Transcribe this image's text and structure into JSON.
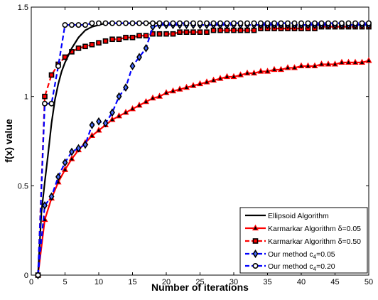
{
  "chart_data": {
    "type": "line",
    "title": "",
    "xlabel": "Number of iterations",
    "ylabel": "f(x) value",
    "xlim": [
      0,
      50
    ],
    "ylim": [
      0,
      1.5
    ],
    "x_ticks": [
      0,
      5,
      10,
      15,
      20,
      25,
      30,
      35,
      40,
      45,
      50
    ],
    "y_ticks": [
      0,
      0.5,
      1,
      1.5
    ],
    "x_tick_labels": [
      "0",
      "5",
      "10",
      "15",
      "20",
      "25",
      "30",
      "35",
      "40",
      "45",
      "50"
    ],
    "y_tick_labels": [
      "0",
      "0.5",
      "1",
      "1.5"
    ],
    "grid": false,
    "legend_position": "bottom-right",
    "series": [
      {
        "name": "Ellipsoid Algorithm",
        "legend_label": "Ellipsoid Algorithm",
        "color": "#000000",
        "line_style": "solid",
        "marker": "none",
        "x": [
          1,
          1.5,
          2,
          2.5,
          3,
          3.5,
          4,
          4.5,
          5,
          6,
          7,
          8,
          9,
          10,
          11,
          12,
          14,
          16,
          18,
          20
        ],
        "y": [
          0,
          0.35,
          0.52,
          0.68,
          0.85,
          0.98,
          1.07,
          1.14,
          1.19,
          1.27,
          1.33,
          1.37,
          1.39,
          1.4,
          1.41,
          1.41,
          1.41,
          1.41,
          1.41,
          1.41
        ]
      },
      {
        "name": "Karmarkar Algorithm δ=0.05",
        "legend_label": "Karmarkar Algorithm δ=0.05",
        "color": "#ff0000",
        "line_style": "solid",
        "marker": "triangle",
        "x": [
          1,
          2,
          3,
          4,
          5,
          6,
          7,
          8,
          9,
          10,
          11,
          12,
          13,
          14,
          15,
          16,
          17,
          18,
          19,
          20,
          21,
          22,
          23,
          24,
          25,
          26,
          27,
          28,
          29,
          30,
          31,
          32,
          33,
          34,
          35,
          36,
          37,
          38,
          39,
          40,
          41,
          42,
          43,
          44,
          45,
          46,
          47,
          48,
          49,
          50
        ],
        "y": [
          0,
          0.31,
          0.43,
          0.52,
          0.59,
          0.65,
          0.7,
          0.74,
          0.78,
          0.81,
          0.84,
          0.87,
          0.89,
          0.91,
          0.93,
          0.95,
          0.97,
          0.99,
          1.0,
          1.02,
          1.03,
          1.04,
          1.05,
          1.06,
          1.07,
          1.08,
          1.09,
          1.1,
          1.11,
          1.11,
          1.12,
          1.13,
          1.13,
          1.14,
          1.14,
          1.15,
          1.15,
          1.16,
          1.16,
          1.17,
          1.17,
          1.17,
          1.18,
          1.18,
          1.18,
          1.19,
          1.19,
          1.19,
          1.19,
          1.2
        ]
      },
      {
        "name": "Karmarkar Algorithm δ=0.50",
        "legend_label": "Karmarkar Algorithm δ=0.50",
        "color": "#ff0000",
        "line_style": "dashed",
        "marker": "square",
        "x": [
          1,
          2,
          3,
          4,
          5,
          6,
          7,
          8,
          9,
          10,
          11,
          12,
          13,
          14,
          15,
          16,
          17,
          18,
          19,
          20,
          21,
          22,
          23,
          24,
          25,
          26,
          27,
          28,
          29,
          30,
          31,
          32,
          33,
          34,
          35,
          36,
          37,
          38,
          39,
          40,
          41,
          42,
          43,
          44,
          45,
          46,
          47,
          48,
          49,
          50
        ],
        "y": [
          0,
          1.0,
          1.12,
          1.18,
          1.22,
          1.25,
          1.27,
          1.28,
          1.29,
          1.3,
          1.31,
          1.32,
          1.32,
          1.33,
          1.33,
          1.34,
          1.34,
          1.35,
          1.35,
          1.35,
          1.35,
          1.36,
          1.36,
          1.36,
          1.36,
          1.36,
          1.37,
          1.37,
          1.37,
          1.37,
          1.37,
          1.37,
          1.37,
          1.38,
          1.38,
          1.38,
          1.38,
          1.38,
          1.38,
          1.38,
          1.38,
          1.38,
          1.39,
          1.39,
          1.39,
          1.39,
          1.39,
          1.39,
          1.39,
          1.39
        ]
      },
      {
        "name": "Our method c4=0.05",
        "legend_label_main": "Our method c",
        "legend_label_sub": "4",
        "legend_label_tail": "=0.05",
        "color": "#0000ff",
        "line_style": "dashed",
        "marker": "diamond",
        "x": [
          1,
          2,
          3,
          4,
          5,
          6,
          7,
          8,
          9,
          10,
          11,
          12,
          13,
          14,
          15,
          16,
          17,
          18,
          19,
          20,
          21,
          22,
          23,
          24,
          25,
          26,
          27,
          28,
          29,
          30,
          31,
          32,
          33,
          34,
          35,
          36,
          37,
          38,
          39,
          40,
          41,
          42,
          43,
          44,
          45,
          46,
          47,
          48,
          49,
          50
        ],
        "y": [
          0,
          0.39,
          0.44,
          0.55,
          0.63,
          0.69,
          0.71,
          0.73,
          0.84,
          0.86,
          0.85,
          0.91,
          1.0,
          1.05,
          1.17,
          1.22,
          1.27,
          1.39,
          1.4,
          1.4,
          1.4,
          1.4,
          1.4,
          1.4,
          1.4,
          1.4,
          1.4,
          1.4,
          1.4,
          1.4,
          1.4,
          1.4,
          1.4,
          1.4,
          1.4,
          1.4,
          1.4,
          1.4,
          1.4,
          1.4,
          1.4,
          1.4,
          1.4,
          1.4,
          1.4,
          1.4,
          1.4,
          1.4,
          1.4,
          1.4
        ]
      },
      {
        "name": "Our method c4=0.20",
        "legend_label_main": "Our method c",
        "legend_label_sub": "4",
        "legend_label_tail": "=0.20",
        "color": "#0000ff",
        "line_style": "dashed",
        "marker": "circle",
        "x": [
          1,
          2,
          3,
          4,
          5,
          6,
          7,
          8,
          9,
          10,
          11,
          12,
          13,
          14,
          15,
          16,
          17,
          18,
          19,
          20,
          21,
          22,
          23,
          24,
          25,
          26,
          27,
          28,
          29,
          30,
          31,
          32,
          33,
          34,
          35,
          36,
          37,
          38,
          39,
          40,
          41,
          42,
          43,
          44,
          45,
          46,
          47,
          48,
          49,
          50
        ],
        "y": [
          0,
          0.96,
          0.96,
          1.17,
          1.4,
          1.4,
          1.4,
          1.4,
          1.41,
          1.41,
          1.41,
          1.41,
          1.41,
          1.41,
          1.41,
          1.41,
          1.41,
          1.41,
          1.41,
          1.41,
          1.41,
          1.41,
          1.41,
          1.41,
          1.41,
          1.41,
          1.41,
          1.41,
          1.41,
          1.41,
          1.41,
          1.41,
          1.41,
          1.41,
          1.41,
          1.41,
          1.41,
          1.41,
          1.41,
          1.41,
          1.41,
          1.41,
          1.41,
          1.41,
          1.41,
          1.41,
          1.41,
          1.41,
          1.41,
          1.41
        ]
      }
    ]
  }
}
